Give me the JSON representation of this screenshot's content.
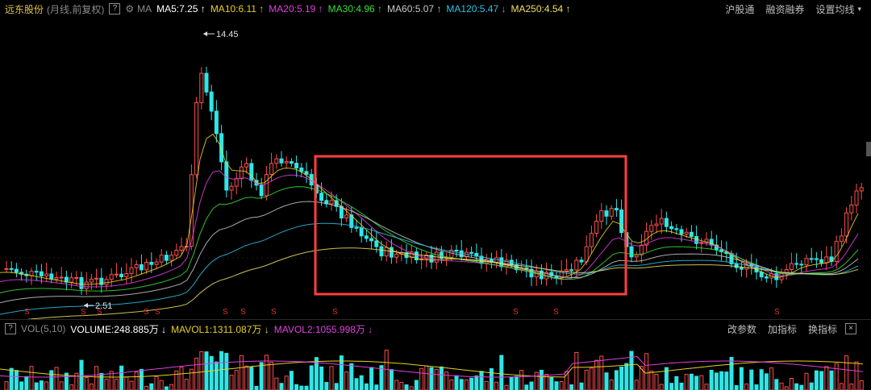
{
  "header": {
    "stock_name": "远东股份",
    "period": "(月线,前复权)",
    "help": "?",
    "ma_label": "MA",
    "ma": [
      {
        "text": "MA5:7.25",
        "arrow": "↑",
        "color": "#ffffff"
      },
      {
        "text": "MA10:6.11",
        "arrow": "↑",
        "color": "#e8d21d"
      },
      {
        "text": "MA20:5.19",
        "arrow": "↑",
        "color": "#e040e0"
      },
      {
        "text": "MA30:4.96",
        "arrow": "↑",
        "color": "#3adf3a"
      },
      {
        "text": "MA60:5.07",
        "arrow": "↑",
        "color": "#c8c8c8"
      },
      {
        "text": "MA120:5.47",
        "arrow": "↓",
        "color": "#2ec2e8"
      },
      {
        "text": "MA250:4.54",
        "arrow": "↑",
        "color": "#f0e060"
      }
    ],
    "links": [
      "沪股通",
      "融资融券",
      "设置均线"
    ]
  },
  "main_chart": {
    "high_label": "14.45",
    "low_label": "2.51",
    "marker": "S",
    "up_color": "#ff4d4d",
    "down_color": "#2ee6e6"
  },
  "volume": {
    "help": "?",
    "label": "VOL(5,10)",
    "volume": "VOLUME:248.885万",
    "volume_arrow": "↓",
    "mavol1": "MAVOL1:1311.087万",
    "mavol1_arrow": "↓",
    "mavol2": "MAVOL2:1055.998万",
    "mavol2_arrow": "↓",
    "links": [
      "改参数",
      "加指标",
      "换指标"
    ],
    "close": "×"
  }
}
